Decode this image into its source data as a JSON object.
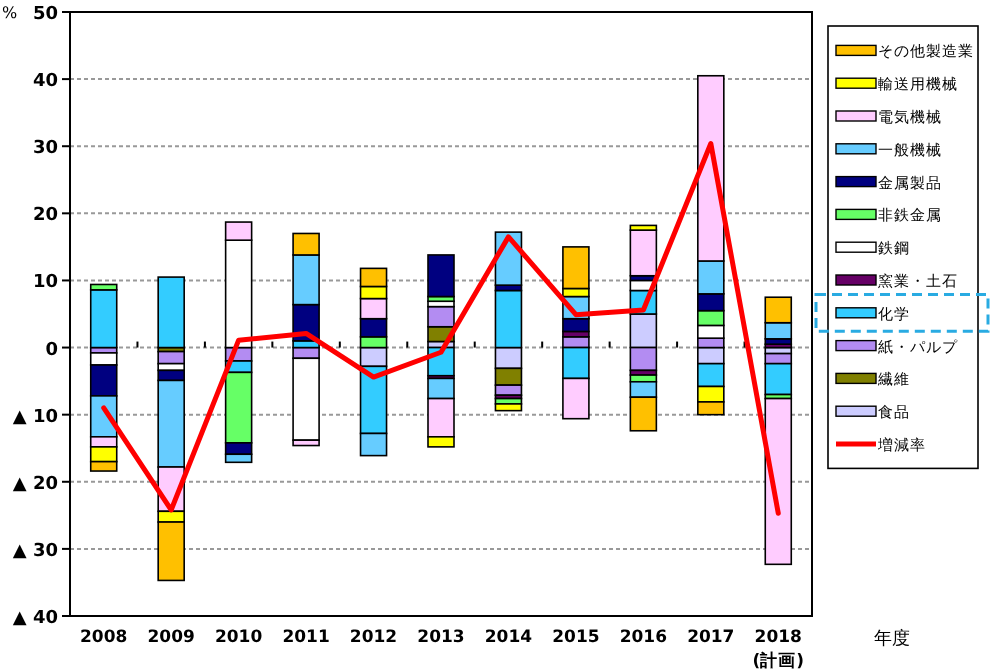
{
  "chart_data": {
    "type": "bar",
    "stacked": true,
    "ylabel": "%",
    "xlabel": "年度",
    "categories": [
      "2008",
      "2009",
      "2010",
      "2011",
      "2012",
      "2013",
      "2014",
      "2015",
      "2016",
      "2017",
      "2018\n(計画)"
    ],
    "ylim": [
      -40,
      50
    ],
    "yticks": [
      50,
      40,
      30,
      20,
      10,
      0,
      {
        "value": -10,
        "label": "▲ 10"
      },
      {
        "value": -20,
        "label": "▲ 20"
      },
      {
        "value": -30,
        "label": "▲ 30"
      },
      {
        "value": -40,
        "label": "▲ 40"
      }
    ],
    "grid": "y",
    "legend": "right",
    "series": [
      {
        "name": "食品",
        "color": "#ccccff",
        "values": [
          null,
          null,
          null,
          null,
          -2.8,
          0.9,
          -3.1,
          null,
          5.0,
          -2.4,
          -0.9
        ]
      },
      {
        "name": "繊維",
        "color": "#808000",
        "values": [
          null,
          -0.6,
          null,
          null,
          null,
          2.2,
          -2.5,
          null,
          null,
          null,
          null
        ]
      },
      {
        "name": "紙・パルプ",
        "color": "#b38cf2",
        "values": [
          -0.8,
          -1.8,
          -2.0,
          -1.6,
          null,
          3.0,
          -1.5,
          1.6,
          -3.4,
          1.4,
          -1.5
        ]
      },
      {
        "name": "化学",
        "color": "#33ccff",
        "values": [
          8.6,
          10.5,
          -1.7,
          1.0,
          -10.0,
          -4.2,
          8.5,
          -4.6,
          3.5,
          -3.4,
          -4.6
        ]
      },
      {
        "name": "窯業・土石",
        "color": "#660066",
        "values": [
          null,
          null,
          null,
          null,
          null,
          -0.4,
          -0.5,
          0.8,
          -0.7,
          null,
          0.5
        ]
      },
      {
        "name": "鉄鋼",
        "color": "#ffffff",
        "values": [
          -1.8,
          -1.0,
          16.0,
          -12.2,
          null,
          0.8,
          null,
          null,
          1.5,
          1.9,
          null
        ]
      },
      {
        "name": "非鉄金属",
        "color": "#66ff66",
        "values": [
          0.8,
          null,
          -10.5,
          null,
          1.6,
          0.7,
          -0.8,
          null,
          -1.0,
          2.2,
          -0.6
        ]
      },
      {
        "name": "金属製品",
        "color": "#000080",
        "values": [
          -4.6,
          -1.5,
          -1.7,
          5.4,
          2.7,
          6.2,
          0.8,
          1.9,
          0.7,
          2.5,
          0.8
        ]
      },
      {
        "name": "一般機械",
        "color": "#66ccff",
        "values": [
          -6.1,
          -12.9,
          -1.2,
          7.4,
          -3.3,
          -3.0,
          7.9,
          3.3,
          -2.3,
          4.9,
          2.4
        ]
      },
      {
        "name": "電気機械",
        "color": "#ffccff",
        "values": [
          -1.5,
          -6.6,
          2.7,
          -0.8,
          3.0,
          -5.7,
          null,
          -6.0,
          6.8,
          27.6,
          -24.7
        ]
      },
      {
        "name": "輸送用機械",
        "color": "#ffff00",
        "values": [
          -2.2,
          -1.6,
          null,
          null,
          1.8,
          -1.5,
          -1.0,
          1.2,
          0.7,
          -2.3,
          null
        ]
      },
      {
        "name": "その他製造業",
        "color": "#ffc000",
        "values": [
          -1.4,
          -8.7,
          null,
          3.2,
          2.7,
          null,
          null,
          6.2,
          -5.0,
          -1.9,
          3.8
        ]
      },
      {
        "name": "増減率",
        "type": "line",
        "color": "#ff0000",
        "values": [
          -9.0,
          -24.2,
          1.1,
          2.1,
          -4.4,
          -0.7,
          16.5,
          4.9,
          5.6,
          30.4,
          -24.7
        ]
      }
    ]
  }
}
